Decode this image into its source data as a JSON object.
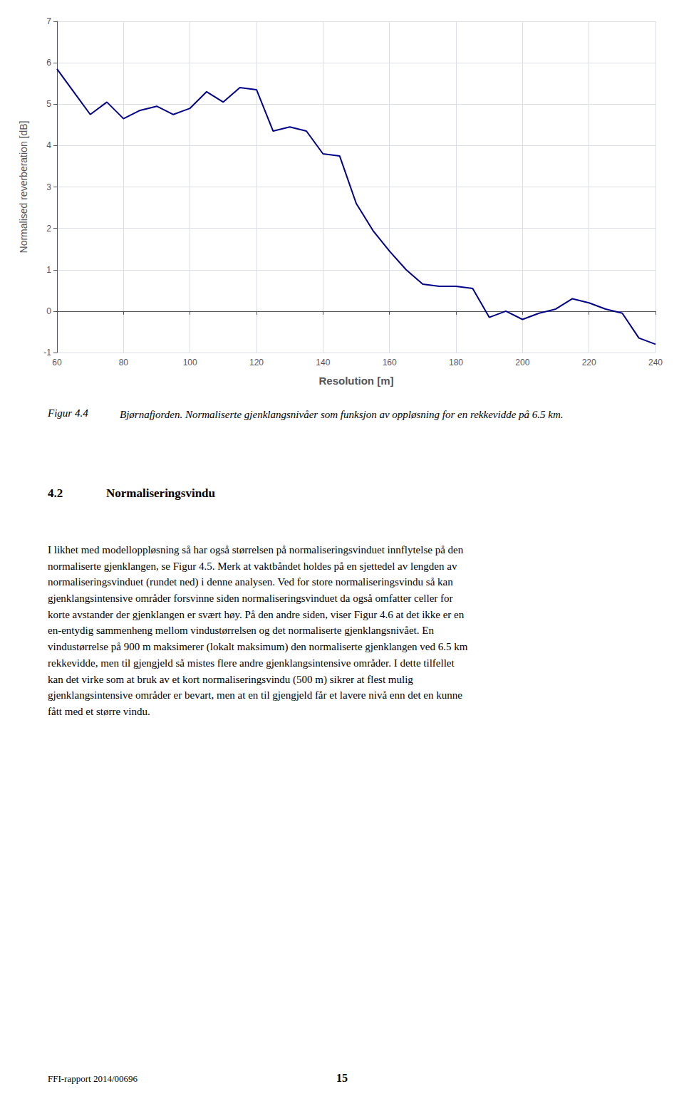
{
  "chart_data": {
    "type": "line",
    "x": [
      60,
      65,
      70,
      75,
      80,
      85,
      90,
      95,
      100,
      105,
      110,
      115,
      120,
      125,
      130,
      135,
      140,
      145,
      150,
      155,
      160,
      165,
      170,
      175,
      180,
      185,
      190,
      195,
      200,
      205,
      210,
      215,
      220,
      225,
      230,
      235,
      240
    ],
    "values": [
      5.85,
      5.3,
      4.75,
      5.05,
      4.65,
      4.85,
      4.95,
      4.75,
      4.9,
      5.3,
      5.05,
      5.4,
      5.35,
      4.35,
      4.45,
      4.35,
      3.8,
      3.75,
      2.6,
      1.95,
      1.45,
      1.0,
      0.65,
      0.6,
      0.6,
      0.55,
      -0.15,
      0.0,
      -0.2,
      -0.05,
      0.05,
      0.3,
      0.2,
      0.05,
      -0.05,
      -0.65,
      -0.8
    ],
    "color": "#00008B",
    "xlabel": "Resolution [m]",
    "ylabel": "Normalised reverberation [dB]",
    "xlim": [
      60,
      240
    ],
    "ylim": [
      -1,
      7
    ],
    "xticks": [
      60,
      80,
      100,
      120,
      140,
      160,
      180,
      200,
      220,
      240
    ],
    "yticks": [
      -1,
      0,
      1,
      2,
      3,
      4,
      5,
      6,
      7
    ],
    "grid": true
  },
  "caption_label": "Figur 4.4",
  "caption": "Bjørnafjorden. Normaliserte gjenklangsnivåer som funksjon av oppløsning for en rekkevidde på 6.5 km.",
  "section_number": "4.2",
  "section_title": "Normaliseringsvindu",
  "body_text_lines": [
    "I likhet med modelloppløsning så har også størrelsen på normaliseringsvinduet innflytelse på den",
    "normaliserte gjenklangen, se Figur 4.5. Merk at vaktbåndet holdes på en sjettedel av lengden av",
    "normaliseringsvinduet (rundet ned) i denne analysen. Ved for store normaliseringsvindu så kan",
    "gjenklangsintensive områder forsvinne siden normaliseringsvinduet da også omfatter celler for",
    "korte avstander der gjenklangen er svært høy. På den andre siden, viser Figur 4.6 at det ikke er en",
    "en-entydig sammenheng mellom vindustørrelsen og det normaliserte gjenklangsnivået. En",
    "vindustørrelse på 900 m maksimerer (lokalt maksimum) den normaliserte gjenklangen ved 6.5 km",
    "rekkevidde, men til gjengjeld så mistes flere andre gjenklangsintensive områder. I dette tilfellet",
    "kan det virke som at bruk av et kort normaliseringsvindu (500 m) sikrer at flest mulig",
    "gjenklangsintensive områder er bevart, men at en til gjengjeld får et lavere nivå enn det en kunne",
    "fått med et større vindu."
  ],
  "footer_left": "FFI-rapport 2014/00696",
  "footer_right": "15"
}
